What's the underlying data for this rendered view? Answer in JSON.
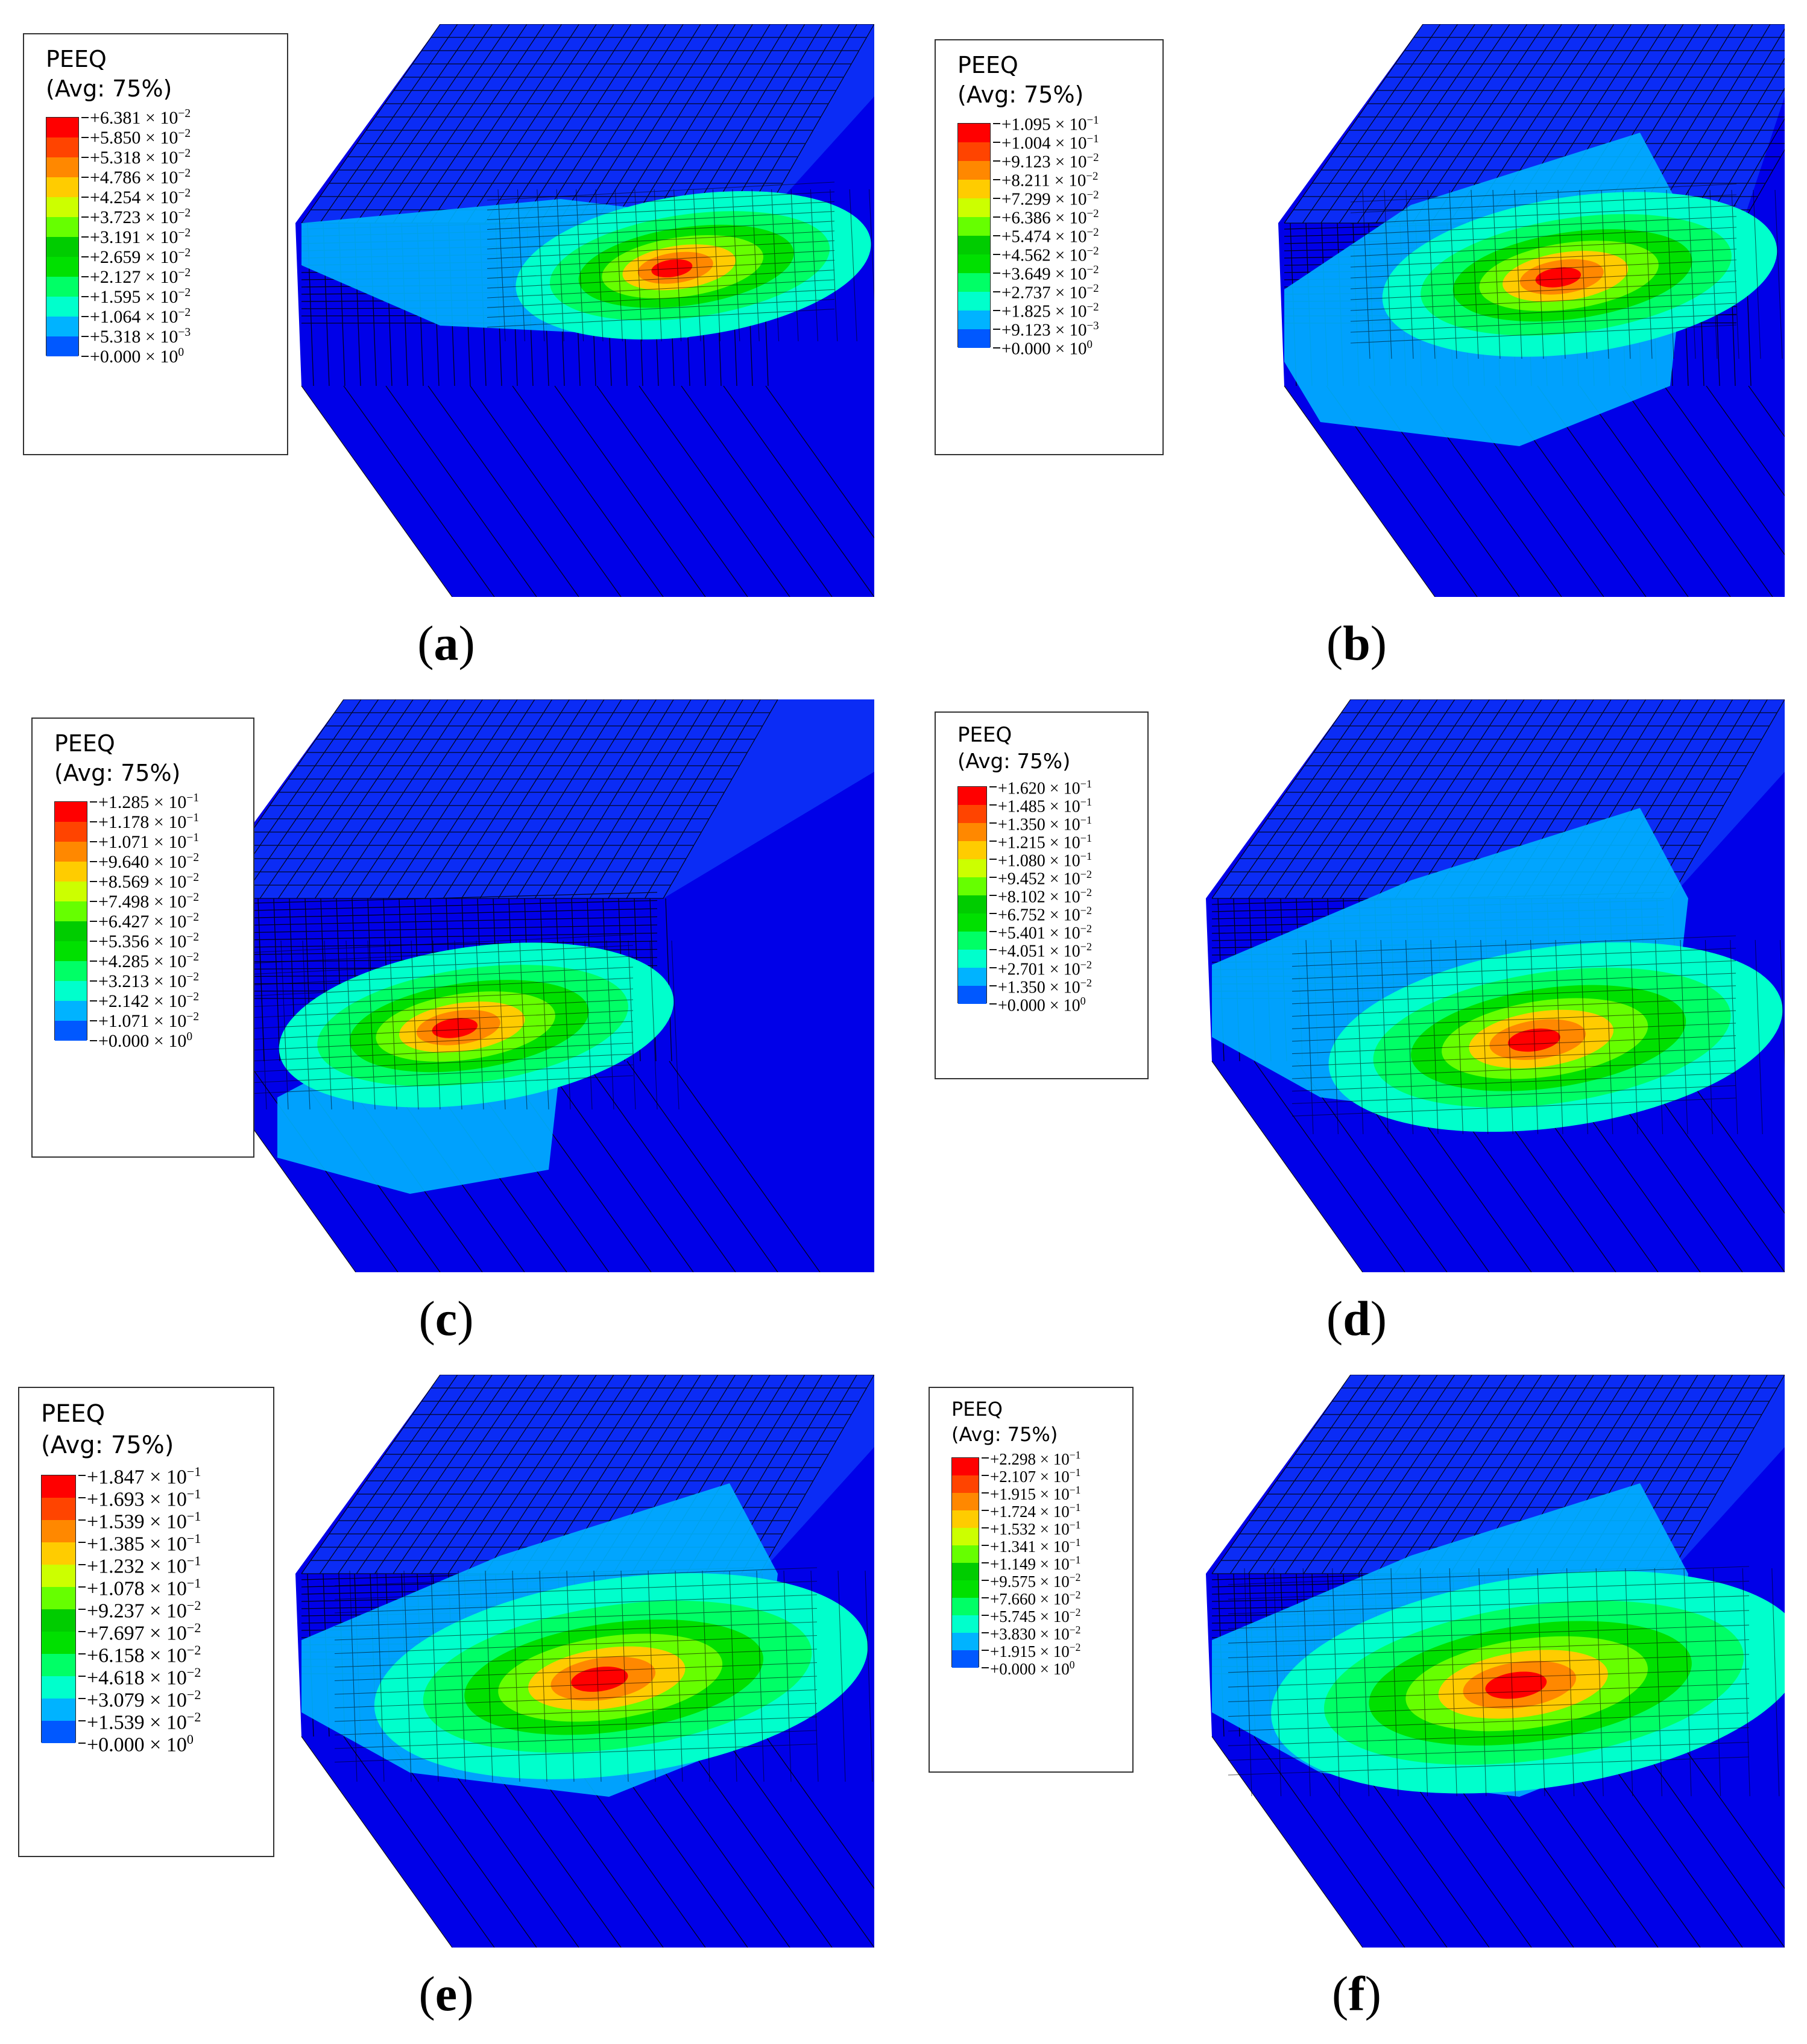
{
  "colors": {
    "contour_scale": [
      "#0000ff",
      "#0058ff",
      "#00b3ff",
      "#00ffcc",
      "#00ff66",
      "#00e000",
      "#00cc00",
      "#66ff00",
      "#ccff00",
      "#ffcc00",
      "#ff8800",
      "#ff4400",
      "#ff0000"
    ],
    "mesh_lines": "#000000",
    "background_part": "#0000e8"
  },
  "panels": [
    {
      "caption_open": "(",
      "caption_letter": "a",
      "caption_close": ")",
      "legend": {
        "variable": "PEEQ",
        "averaging": "(Avg: 75%)",
        "values": [
          "+6.381 × 10",
          "+5.850 × 10",
          "+5.318 × 10",
          "+4.786 × 10",
          "+4.254 × 10",
          "+3.723 × 10",
          "+3.191 × 10",
          "+2.659 × 10",
          "+2.127 × 10",
          "+1.595 × 10",
          "+1.064 × 10",
          "+5.318 × 10",
          "+0.000 × 10"
        ],
        "exponents": [
          "−2",
          "−2",
          "−2",
          "−2",
          "−2",
          "−2",
          "−2",
          "−2",
          "−2",
          "−2",
          "−2",
          "−3",
          "0"
        ]
      }
    },
    {
      "caption_open": "(",
      "caption_letter": "b",
      "caption_close": ")",
      "legend": {
        "variable": "PEEQ",
        "averaging": "(Avg: 75%)",
        "values": [
          "+1.095 × 10",
          "+1.004 × 10",
          "+9.123 × 10",
          "+8.211 × 10",
          "+7.299 × 10",
          "+6.386 × 10",
          "+5.474 × 10",
          "+4.562 × 10",
          "+3.649 × 10",
          "+2.737 × 10",
          "+1.825 × 10",
          "+9.123 × 10",
          "+0.000 × 10"
        ],
        "exponents": [
          "−1",
          "−1",
          "−2",
          "−2",
          "−2",
          "−2",
          "−2",
          "−2",
          "−2",
          "−2",
          "−2",
          "−3",
          "0"
        ]
      }
    },
    {
      "caption_open": "(",
      "caption_letter": "c",
      "caption_close": ")",
      "legend": {
        "variable": "PEEQ",
        "averaging": "(Avg: 75%)",
        "values": [
          "+1.285 × 10",
          "+1.178 × 10",
          "+1.071 × 10",
          "+9.640 × 10",
          "+8.569 × 10",
          "+7.498 × 10",
          "+6.427 × 10",
          "+5.356 × 10",
          "+4.285 × 10",
          "+3.213 × 10",
          "+2.142 × 10",
          "+1.071 × 10",
          "+0.000 × 10"
        ],
        "exponents": [
          "−1",
          "−1",
          "−1",
          "−2",
          "−2",
          "−2",
          "−2",
          "−2",
          "−2",
          "−2",
          "−2",
          "−2",
          "0"
        ]
      }
    },
    {
      "caption_open": "(",
      "caption_letter": "d",
      "caption_close": ")",
      "legend": {
        "variable": "PEEQ",
        "averaging": "(Avg: 75%)",
        "values": [
          "+1.620 × 10",
          "+1.485 × 10",
          "+1.350 × 10",
          "+1.215 × 10",
          "+1.080 × 10",
          "+9.452 × 10",
          "+8.102 × 10",
          "+6.752 × 10",
          "+5.401 × 10",
          "+4.051 × 10",
          "+2.701 × 10",
          "+1.350 × 10",
          "+0.000 × 10"
        ],
        "exponents": [
          "−1",
          "−1",
          "−1",
          "−1",
          "−1",
          "−2",
          "−2",
          "−2",
          "−2",
          "−2",
          "−2",
          "−2",
          "0"
        ]
      }
    },
    {
      "caption_open": "(",
      "caption_letter": "e",
      "caption_close": ")",
      "legend": {
        "variable": "PEEQ",
        "averaging": "(Avg: 75%)",
        "values": [
          "+1.847 × 10",
          "+1.693 × 10",
          "+1.539 × 10",
          "+1.385 × 10",
          "+1.232 × 10",
          "+1.078 × 10",
          "+9.237 × 10",
          "+7.697 × 10",
          "+6.158 × 10",
          "+4.618 × 10",
          "+3.079 × 10",
          "+1.539 × 10",
          "+0.000 × 10"
        ],
        "exponents": [
          "−1",
          "−1",
          "−1",
          "−1",
          "−1",
          "−1",
          "−2",
          "−2",
          "−2",
          "−2",
          "−2",
          "−2",
          "0"
        ]
      }
    },
    {
      "caption_open": "(",
      "caption_letter": "f",
      "caption_close": ")",
      "legend": {
        "variable": "PEEQ",
        "averaging": "(Avg: 75%)",
        "values": [
          "+2.298 × 10",
          "+2.107 × 10",
          "+1.915 × 10",
          "+1.724 × 10",
          "+1.532 × 10",
          "+1.341 × 10",
          "+1.149 × 10",
          "+9.575 × 10",
          "+7.660 × 10",
          "+5.745 × 10",
          "+3.830 × 10",
          "+1.915 × 10",
          "+0.000 × 10"
        ],
        "exponents": [
          "−1",
          "−1",
          "−1",
          "−1",
          "−1",
          "−1",
          "−1",
          "−2",
          "−2",
          "−2",
          "−2",
          "−2",
          "0"
        ]
      }
    }
  ]
}
